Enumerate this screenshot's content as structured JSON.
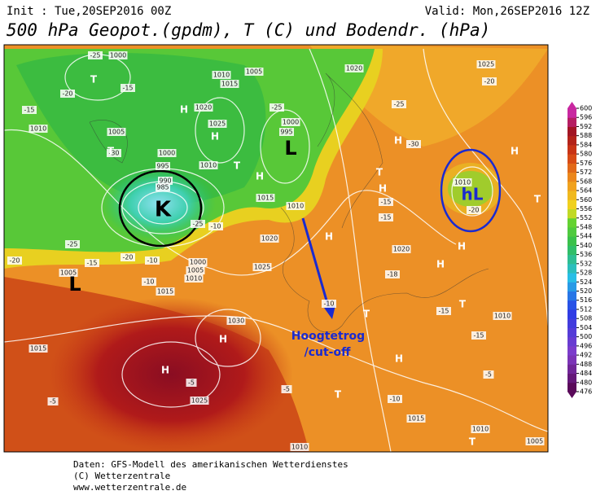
{
  "header": {
    "init": "Init : Tue,20SEP2016 00Z",
    "valid": "Valid: Mon,26SEP2016 12Z",
    "title": "500 hPa Geopot.(gpdm), T (C) und Bodendr. (hPa)"
  },
  "map": {
    "isobar_labels": [
      "1000",
      "1010",
      "1005",
      "1015",
      "1020",
      "1025",
      "1000",
      "995",
      "1005",
      "1010",
      "1000",
      "995",
      "990",
      "985",
      "1010",
      "1015",
      "1010",
      "1020",
      "1025",
      "1005",
      "1000",
      "1005",
      "1010",
      "1015",
      "1030",
      "1015",
      "1025",
      "1010",
      "1015",
      "1025",
      "1020",
      "1020",
      "1010",
      "1010",
      "1005",
      "1010"
    ],
    "temperature_labels": [
      "-25",
      "-20",
      "-15",
      "-15",
      "-30",
      "-25",
      "-20",
      "-15",
      "-20",
      "-10",
      "-10",
      "-5",
      "-5",
      "-15",
      "-15",
      "-18",
      "-10",
      "-15",
      "-20",
      "-20",
      "-25",
      "-30",
      "-25",
      "-25",
      "-10",
      "-15",
      "-10",
      "-5",
      "-5"
    ],
    "symbols": [
      "H",
      "H",
      "H",
      "H",
      "H",
      "H",
      "H",
      "H",
      "H",
      "H",
      "H",
      "H",
      "T",
      "T",
      "T",
      "T",
      "T",
      "T",
      "T",
      "T",
      "T"
    ],
    "annotations": {
      "k": "K",
      "l_north": "L",
      "l_west": "L",
      "hl": "hL",
      "note_1": "Hoogtetrog",
      "note_2": "/cut-off"
    }
  },
  "colorbar": {
    "ticks": [
      476,
      480,
      484,
      488,
      492,
      496,
      500,
      504,
      508,
      512,
      516,
      520,
      524,
      528,
      532,
      536,
      540,
      544,
      548,
      552,
      556,
      560,
      564,
      568,
      572,
      576,
      580,
      584,
      588,
      592,
      596,
      600
    ]
  },
  "footer": {
    "line_1": "Daten: GFS-Modell des amerikanischen Wetterdienstes",
    "line_2": "(C) Wetterzentrale",
    "line_3": "www.wetterzentrale.de"
  }
}
